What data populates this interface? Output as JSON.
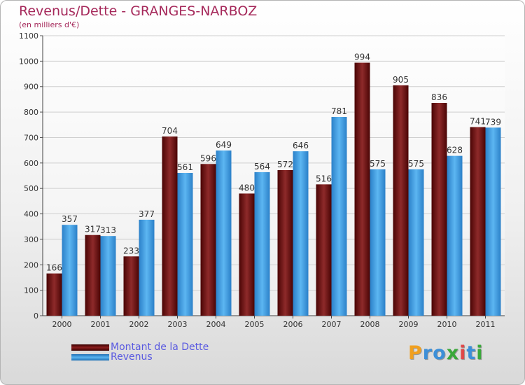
{
  "chart_data": {
    "type": "bar",
    "title": "Revenus/Dette - GRANGES-NARBOZ",
    "subtitle": "(en milliers d'€)",
    "categories": [
      "2000",
      "2001",
      "2002",
      "2003",
      "2004",
      "2005",
      "2006",
      "2007",
      "2008",
      "2009",
      "2010",
      "2011"
    ],
    "series": [
      {
        "name": "Montant de la Dette",
        "color": "#8b1e1e",
        "values": [
          166,
          317,
          233,
          704,
          596,
          480,
          572,
          516,
          994,
          905,
          836,
          741
        ]
      },
      {
        "name": "Revenus",
        "color": "#3f9ee3",
        "values": [
          357,
          313,
          377,
          561,
          649,
          564,
          646,
          781,
          575,
          575,
          628,
          739
        ]
      }
    ],
    "ylim": [
      0,
      1100
    ],
    "yticks": [
      0,
      100,
      200,
      300,
      400,
      500,
      600,
      700,
      800,
      900,
      1000,
      1100
    ],
    "grid": true,
    "legend_position": "bottom-left"
  },
  "logo": {
    "letters": [
      "P",
      "r",
      "o",
      "x",
      "i",
      "t",
      "i"
    ],
    "colors": [
      "#f0a020",
      "#3c8fd8",
      "#3c8fd8",
      "#3aa83a",
      "#e04848",
      "#3c8fd8",
      "#3aa83a"
    ]
  }
}
